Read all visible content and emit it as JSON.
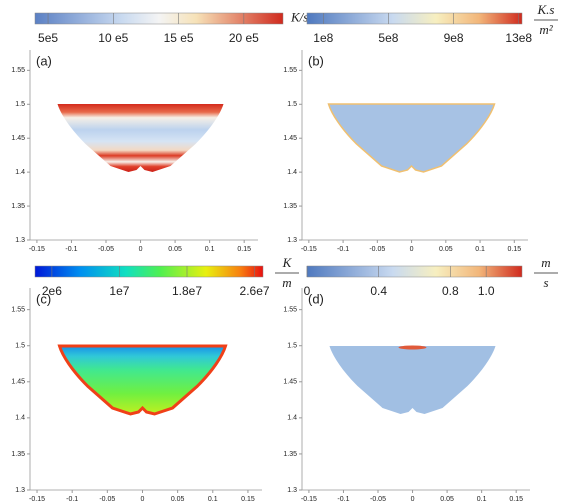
{
  "panels": [
    {
      "label": "(a)",
      "unit": "K/s",
      "colorbar": {
        "lim": [
          400000,
          2300000
        ],
        "ticks": [
          {
            "value": 500000,
            "label": "5e5"
          },
          {
            "value": 1000000,
            "label": "10 e5"
          },
          {
            "value": 1500000,
            "label": "15 e5"
          },
          {
            "value": 2000000,
            "label": "20 e5"
          }
        ]
      },
      "xlim": [
        -0.16,
        0.17
      ],
      "ylim": [
        1.3,
        1.58
      ],
      "xticks": [
        -0.15,
        -0.1,
        -0.05,
        0,
        0.05,
        0.1,
        0.15
      ],
      "yticks": [
        1.3,
        1.35,
        1.4,
        1.45,
        1.5,
        1.55
      ]
    },
    {
      "label": "(b)",
      "unit_numerator": "K.s",
      "unit_denominator": "m²",
      "colorbar": {
        "lim": [
          0,
          1320000000
        ],
        "ticks": [
          {
            "value": 100000000,
            "label": "1e8"
          },
          {
            "value": 500000000,
            "label": "5e8"
          },
          {
            "value": 900000000,
            "label": "9e8"
          },
          {
            "value": 1300000000,
            "label": "13e8"
          }
        ]
      },
      "xlim": [
        -0.16,
        0.17
      ],
      "ylim": [
        1.3,
        1.58
      ],
      "xticks": [
        -0.15,
        -0.1,
        -0.05,
        0,
        0.05,
        0.1,
        0.15
      ],
      "yticks": [
        1.3,
        1.35,
        1.4,
        1.45,
        1.5,
        1.55
      ]
    },
    {
      "label": "(c)",
      "unit_numerator": "K",
      "unit_denominator": "m",
      "colorbar": {
        "lim": [
          0,
          27000000
        ],
        "ticks": [
          {
            "value": 2000000,
            "label": "2e6"
          },
          {
            "value": 10000000,
            "label": "1e7"
          },
          {
            "value": 18000000,
            "label": "1.8e7"
          },
          {
            "value": 26000000,
            "label": "2.6e7"
          }
        ]
      },
      "xlim": [
        -0.16,
        0.17
      ],
      "ylim": [
        1.3,
        1.58
      ],
      "xticks": [
        -0.15,
        -0.1,
        -0.05,
        0,
        0.05,
        0.1,
        0.15
      ],
      "yticks": [
        1.3,
        1.35,
        1.4,
        1.45,
        1.5,
        1.55
      ]
    },
    {
      "label": "(d)",
      "unit_numerator": "m",
      "unit_denominator": "s",
      "colorbar": {
        "lim": [
          0,
          1.2
        ],
        "ticks": [
          0,
          0.4,
          0.8,
          {
            "value": 1,
            "label": "1.0"
          }
        ]
      },
      "xlim": [
        -0.16,
        0.17
      ],
      "ylim": [
        1.3,
        1.58
      ],
      "xticks": [
        -0.15,
        -0.1,
        -0.05,
        0,
        0.05,
        0.1,
        0.15
      ],
      "yticks": [
        1.3,
        1.35,
        1.4,
        1.45,
        1.5,
        1.55
      ]
    }
  ]
}
